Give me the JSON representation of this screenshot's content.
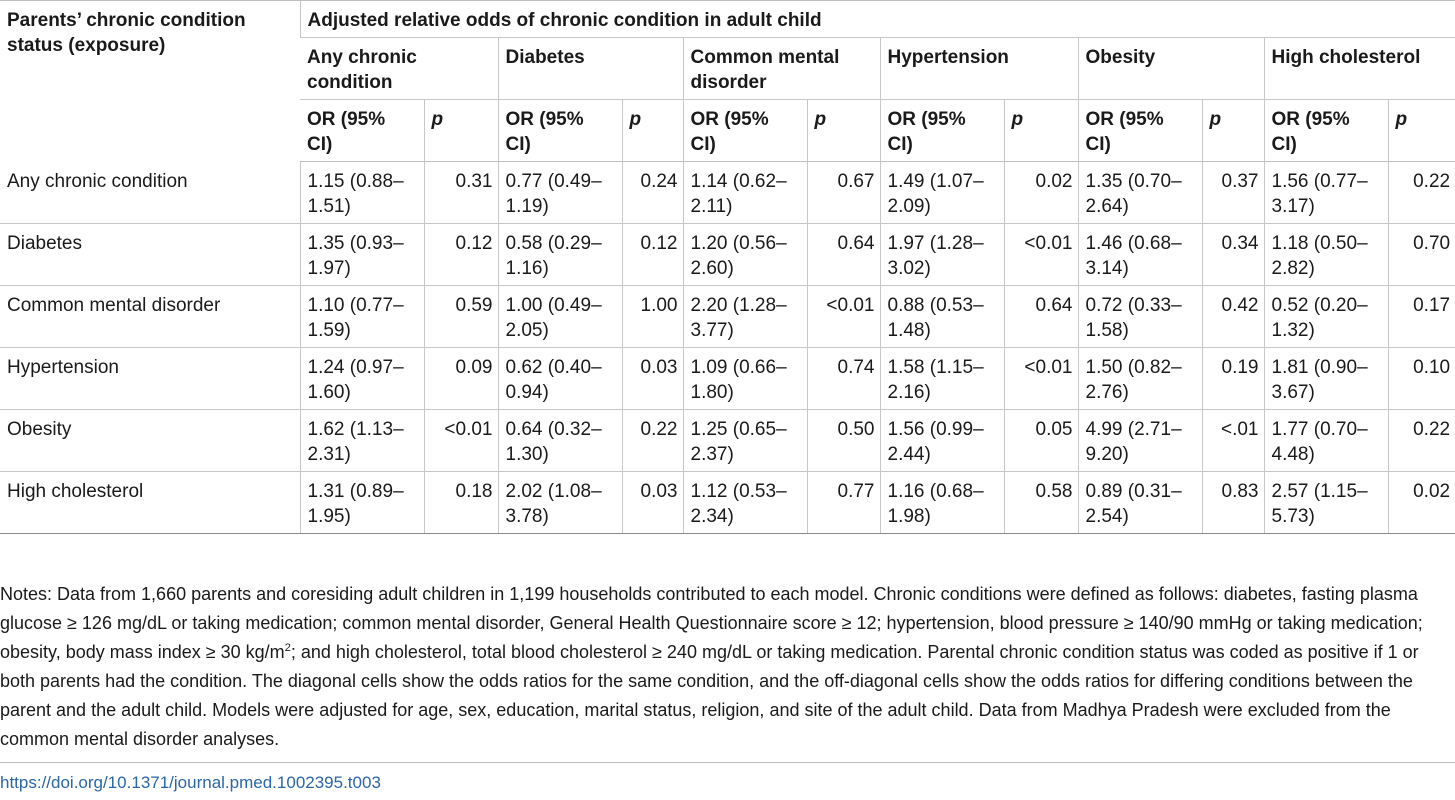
{
  "table": {
    "exposure_header": "Parents’ chronic condition status (exposure)",
    "outcome_header": "Adjusted relative odds of chronic condition in adult child",
    "outcomes": [
      "Any chronic condition",
      "Diabetes",
      "Common mental disorder",
      "Hypertension",
      "Obesity",
      "High cholesterol"
    ],
    "or_label": "OR (95% CI)",
    "p_label": "p",
    "rows": [
      {
        "label": "Any chronic condition",
        "cells": [
          {
            "or": "1.15 (0.88–1.51)",
            "p": "0.31"
          },
          {
            "or": "0.77 (0.49–1.19)",
            "p": "0.24"
          },
          {
            "or": "1.14 (0.62–2.11)",
            "p": "0.67"
          },
          {
            "or": "1.49 (1.07–2.09)",
            "p": "0.02"
          },
          {
            "or": "1.35 (0.70–2.64)",
            "p": "0.37"
          },
          {
            "or": "1.56 (0.77–3.17)",
            "p": "0.22"
          }
        ]
      },
      {
        "label": "Diabetes",
        "cells": [
          {
            "or": "1.35 (0.93–1.97)",
            "p": "0.12"
          },
          {
            "or": "0.58 (0.29–1.16)",
            "p": "0.12"
          },
          {
            "or": "1.20 (0.56–2.60)",
            "p": "0.64"
          },
          {
            "or": "1.97 (1.28–3.02)",
            "p": "<0.01"
          },
          {
            "or": "1.46 (0.68–3.14)",
            "p": "0.34"
          },
          {
            "or": "1.18 (0.50–2.82)",
            "p": "0.70"
          }
        ]
      },
      {
        "label": "Common mental disorder",
        "cells": [
          {
            "or": "1.10 (0.77–1.59)",
            "p": "0.59"
          },
          {
            "or": "1.00 (0.49–2.05)",
            "p": "1.00"
          },
          {
            "or": "2.20 (1.28–3.77)",
            "p": "<0.01"
          },
          {
            "or": "0.88 (0.53–1.48)",
            "p": "0.64"
          },
          {
            "or": "0.72 (0.33–1.58)",
            "p": "0.42"
          },
          {
            "or": "0.52 (0.20–1.32)",
            "p": "0.17"
          }
        ]
      },
      {
        "label": "Hypertension",
        "cells": [
          {
            "or": "1.24 (0.97–1.60)",
            "p": "0.09"
          },
          {
            "or": "0.62 (0.40–0.94)",
            "p": "0.03"
          },
          {
            "or": "1.09 (0.66–1.80)",
            "p": "0.74"
          },
          {
            "or": "1.58 (1.15–2.16)",
            "p": "<0.01"
          },
          {
            "or": "1.50 (0.82–2.76)",
            "p": "0.19"
          },
          {
            "or": "1.81 (0.90–3.67)",
            "p": "0.10"
          }
        ]
      },
      {
        "label": "Obesity",
        "cells": [
          {
            "or": "1.62 (1.13–2.31)",
            "p": "<0.01"
          },
          {
            "or": "0.64 (0.32–1.30)",
            "p": "0.22"
          },
          {
            "or": "1.25 (0.65–2.37)",
            "p": "0.50"
          },
          {
            "or": "1.56 (0.99–2.44)",
            "p": "0.05"
          },
          {
            "or": "4.99 (2.71–9.20)",
            "p": "<.01"
          },
          {
            "or": "1.77 (0.70–4.48)",
            "p": "0.22"
          }
        ]
      },
      {
        "label": "High cholesterol",
        "cells": [
          {
            "or": "1.31 (0.89–1.95)",
            "p": "0.18"
          },
          {
            "or": "2.02 (1.08–3.78)",
            "p": "0.03"
          },
          {
            "or": "1.12 (0.53–2.34)",
            "p": "0.77"
          },
          {
            "or": "1.16 (0.68–1.98)",
            "p": "0.58"
          },
          {
            "or": "0.89 (0.31–2.54)",
            "p": "0.83"
          },
          {
            "or": "2.57 (1.15–5.73)",
            "p": "0.02"
          }
        ]
      }
    ]
  },
  "notes": {
    "before_sup": "Notes: Data from 1,660 parents and coresiding adult children in 1,199 households contributed to each model. Chronic conditions were defined as follows: diabetes, fasting plasma glucose ≥ 126 mg/dL or taking medication; common mental disorder, General Health Questionnaire score ≥ 12; hypertension, blood pressure ≥ 140/90 mmHg or taking medication; obesity, body mass index ≥ 30 kg/m",
    "sup": "2",
    "after_sup": "; and high cholesterol, total blood cholesterol ≥ 240 mg/dL or taking medication. Parental chronic condition status was coded as positive if 1 or both parents had the condition. The diagonal cells show the odds ratios for the same condition, and the off-diagonal cells show the odds ratios for differing conditions between the parent and the adult child. Models were adjusted for age, sex, education, marital status, religion, and site of the adult child. Data from Madhya Pradesh were excluded from the common mental disorder analyses."
  },
  "doi": "https://doi.org/10.1371/journal.pmed.1002395.t003"
}
